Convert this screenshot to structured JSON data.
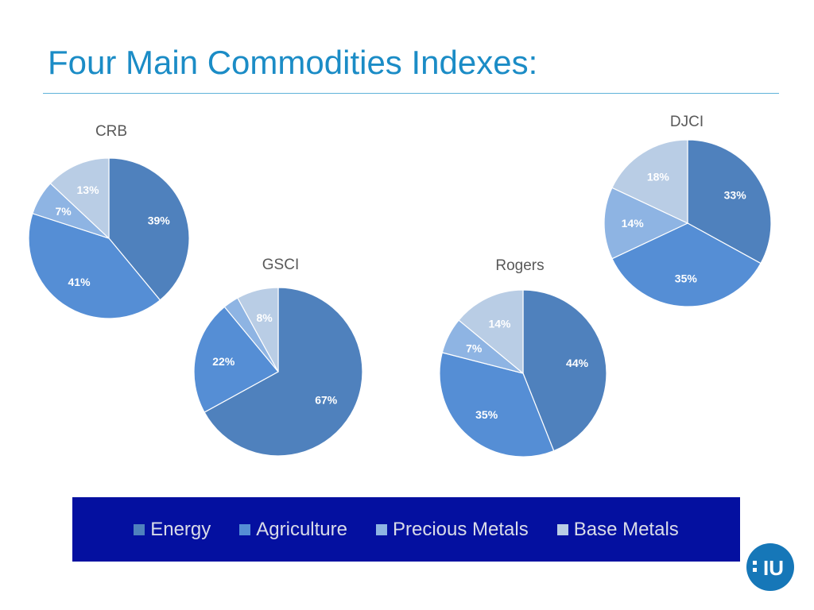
{
  "slide": {
    "title": "Four Main Commodities Indexes:"
  },
  "colors": {
    "title": "#1b8cc6",
    "legend_bg": "#0410a0",
    "logo": "#1677b8"
  },
  "logo": {
    "icon": "iu-logo-icon",
    "text": "IU"
  },
  "chart_data": [
    {
      "type": "pie",
      "title": "CRB",
      "categories": [
        "Energy",
        "Agriculture",
        "Precious Metals",
        "Base Metals"
      ],
      "values": [
        39,
        41,
        7,
        13
      ],
      "labels": [
        "39%",
        "41%",
        "7%",
        "13%"
      ],
      "colors": [
        "#4f81bd",
        "#558ed5",
        "#8eb4e3",
        "#b9cde5"
      ]
    },
    {
      "type": "pie",
      "title": "GSCI",
      "categories": [
        "Energy",
        "Agriculture",
        "Precious Metals",
        "Base Metals"
      ],
      "values": [
        67,
        22,
        3,
        8
      ],
      "labels": [
        "67%",
        "22%",
        "",
        "8%"
      ],
      "colors": [
        "#4f81bd",
        "#558ed5",
        "#8eb4e3",
        "#b9cde5"
      ]
    },
    {
      "type": "pie",
      "title": "Rogers",
      "categories": [
        "Energy",
        "Agriculture",
        "Precious Metals",
        "Base Metals"
      ],
      "values": [
        44,
        35,
        7,
        14
      ],
      "labels": [
        "44%",
        "35%",
        "7%",
        "14%"
      ],
      "colors": [
        "#4f81bd",
        "#558ed5",
        "#8eb4e3",
        "#b9cde5"
      ]
    },
    {
      "type": "pie",
      "title": "DJCI",
      "categories": [
        "Energy",
        "Agriculture",
        "Precious Metals",
        "Base Metals"
      ],
      "values": [
        33,
        35,
        14,
        18
      ],
      "labels": [
        "33%",
        "35%",
        "14%",
        "18%"
      ],
      "colors": [
        "#4f81bd",
        "#558ed5",
        "#8eb4e3",
        "#b9cde5"
      ]
    }
  ],
  "legend": {
    "items": [
      {
        "label": "Energy",
        "color": "#4f81bd"
      },
      {
        "label": "Agriculture",
        "color": "#558ed5"
      },
      {
        "label": "Precious Metals",
        "color": "#8eb4e3"
      },
      {
        "label": "Base Metals",
        "color": "#b9cde5"
      }
    ]
  }
}
